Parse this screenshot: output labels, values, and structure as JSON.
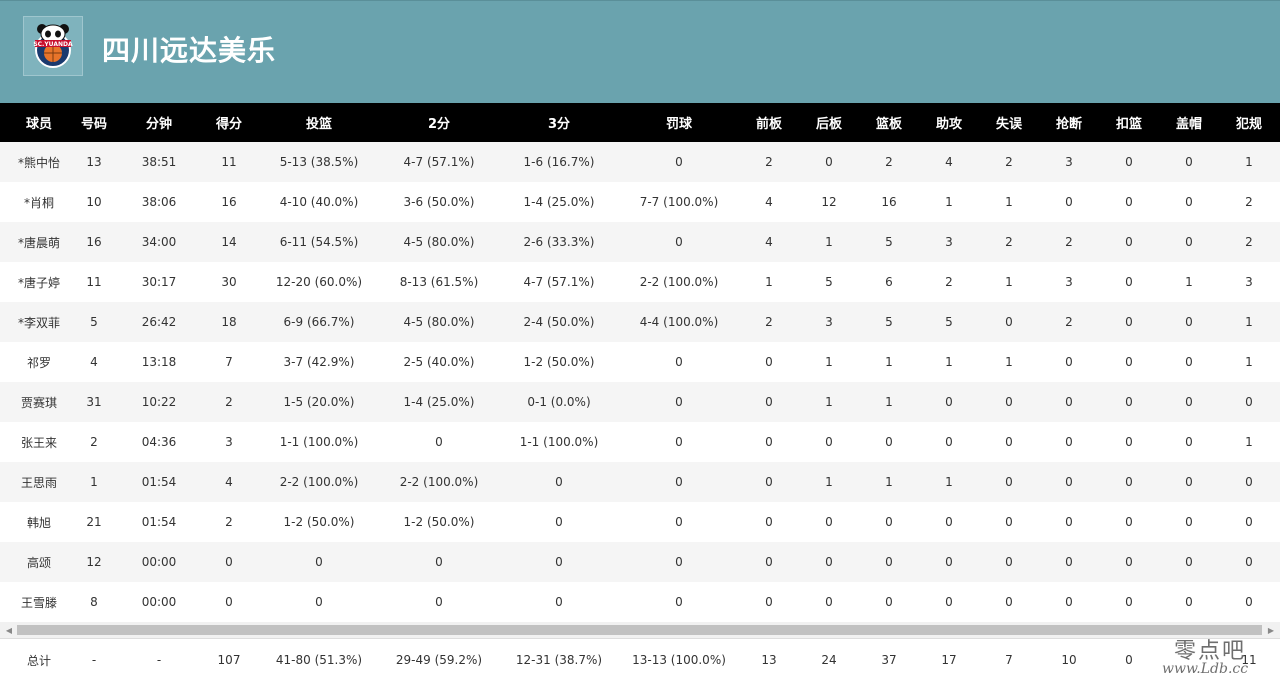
{
  "header": {
    "team_name": "四川远达美乐",
    "logo_text": "SC.YUANDA",
    "bg_color": "#6aa3ae"
  },
  "table": {
    "columns": [
      "球员",
      "号码",
      "分钟",
      "得分",
      "投篮",
      "2分",
      "3分",
      "罚球",
      "前板",
      "后板",
      "篮板",
      "助攻",
      "失误",
      "抢断",
      "扣篮",
      "盖帽",
      "犯规"
    ],
    "rows": [
      [
        "*熊中怡",
        "13",
        "38:51",
        "11",
        "5-13 (38.5%)",
        "4-7 (57.1%)",
        "1-6 (16.7%)",
        "0",
        "2",
        "0",
        "2",
        "4",
        "2",
        "3",
        "0",
        "0",
        "1"
      ],
      [
        "*肖桐",
        "10",
        "38:06",
        "16",
        "4-10 (40.0%)",
        "3-6 (50.0%)",
        "1-4 (25.0%)",
        "7-7 (100.0%)",
        "4",
        "12",
        "16",
        "1",
        "1",
        "0",
        "0",
        "0",
        "2"
      ],
      [
        "*唐晨萌",
        "16",
        "34:00",
        "14",
        "6-11 (54.5%)",
        "4-5 (80.0%)",
        "2-6 (33.3%)",
        "0",
        "4",
        "1",
        "5",
        "3",
        "2",
        "2",
        "0",
        "0",
        "2"
      ],
      [
        "*唐子婷",
        "11",
        "30:17",
        "30",
        "12-20 (60.0%)",
        "8-13 (61.5%)",
        "4-7 (57.1%)",
        "2-2 (100.0%)",
        "1",
        "5",
        "6",
        "2",
        "1",
        "3",
        "0",
        "1",
        "3"
      ],
      [
        "*李双菲",
        "5",
        "26:42",
        "18",
        "6-9 (66.7%)",
        "4-5 (80.0%)",
        "2-4 (50.0%)",
        "4-4 (100.0%)",
        "2",
        "3",
        "5",
        "5",
        "0",
        "2",
        "0",
        "0",
        "1"
      ],
      [
        "祁罗",
        "4",
        "13:18",
        "7",
        "3-7 (42.9%)",
        "2-5 (40.0%)",
        "1-2 (50.0%)",
        "0",
        "0",
        "1",
        "1",
        "1",
        "1",
        "0",
        "0",
        "0",
        "1"
      ],
      [
        "贾赛琪",
        "31",
        "10:22",
        "2",
        "1-5 (20.0%)",
        "1-4 (25.0%)",
        "0-1 (0.0%)",
        "0",
        "0",
        "1",
        "1",
        "0",
        "0",
        "0",
        "0",
        "0",
        "0"
      ],
      [
        "张王来",
        "2",
        "04:36",
        "3",
        "1-1 (100.0%)",
        "0",
        "1-1 (100.0%)",
        "0",
        "0",
        "0",
        "0",
        "0",
        "0",
        "0",
        "0",
        "0",
        "1"
      ],
      [
        "王思雨",
        "1",
        "01:54",
        "4",
        "2-2 (100.0%)",
        "2-2 (100.0%)",
        "0",
        "0",
        "0",
        "1",
        "1",
        "1",
        "0",
        "0",
        "0",
        "0",
        "0"
      ],
      [
        "韩旭",
        "21",
        "01:54",
        "2",
        "1-2 (50.0%)",
        "1-2 (50.0%)",
        "0",
        "0",
        "0",
        "0",
        "0",
        "0",
        "0",
        "0",
        "0",
        "0",
        "0"
      ],
      [
        "高颂",
        "12",
        "00:00",
        "0",
        "0",
        "0",
        "0",
        "0",
        "0",
        "0",
        "0",
        "0",
        "0",
        "0",
        "0",
        "0",
        "0"
      ],
      [
        "王雪滕",
        "8",
        "00:00",
        "0",
        "0",
        "0",
        "0",
        "0",
        "0",
        "0",
        "0",
        "0",
        "0",
        "0",
        "0",
        "0",
        "0"
      ]
    ],
    "totals": [
      "总计",
      "-",
      "-",
      "107",
      "41-80 (51.3%)",
      "29-49 (59.2%)",
      "12-31 (38.7%)",
      "13-13 (100.0%)",
      "13",
      "24",
      "37",
      "17",
      "7",
      "10",
      "0",
      "",
      "11"
    ]
  },
  "watermark": {
    "cn": "零点吧",
    "url": "www.Ldb.cc"
  }
}
